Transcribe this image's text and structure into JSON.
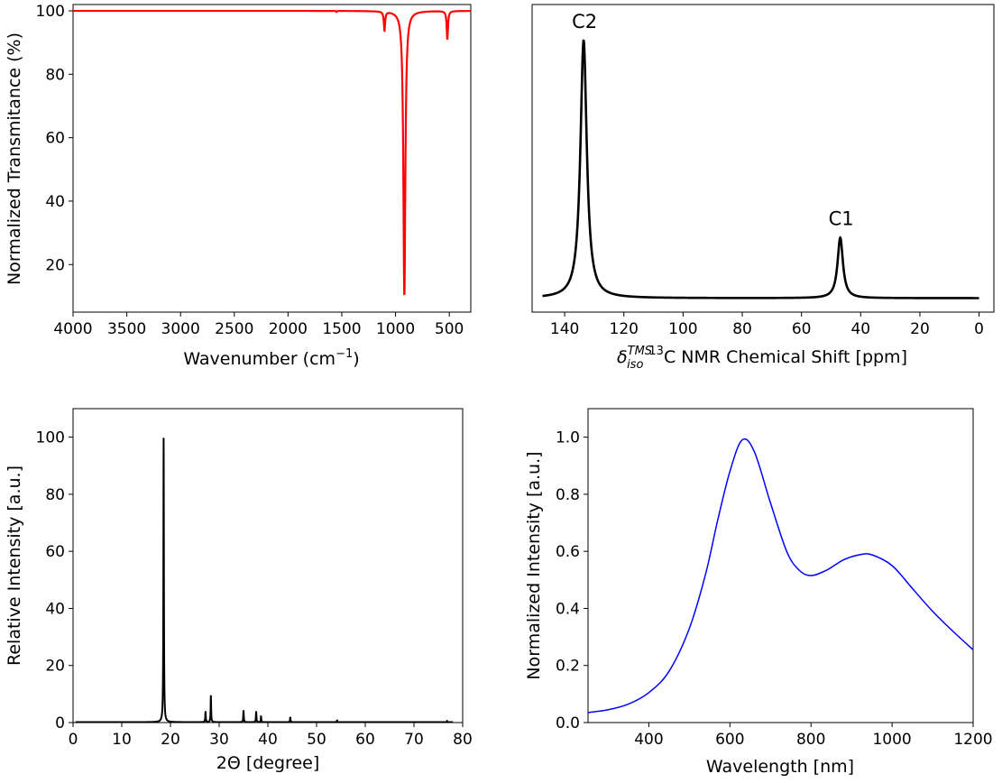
{
  "chart_data": [
    {
      "id": "ir",
      "type": "line",
      "xlabel": "Wavenumber (cm",
      "xlabel_sup": "−1",
      "xlabel_end": ")",
      "ylabel": "Normalized Transmitance (%)",
      "xlim": [
        4000,
        300
      ],
      "ylim": [
        5,
        102
      ],
      "xticks": [
        4000,
        3500,
        3000,
        2500,
        2000,
        1500,
        1000,
        500
      ],
      "yticks": [
        20,
        40,
        60,
        80,
        100
      ],
      "color": "#ff0000",
      "baseline": 100,
      "peaks": [
        {
          "x": 1550,
          "depth": 0.3,
          "width": 4
        },
        {
          "x": 1103,
          "depth": 6,
          "width": 7
        },
        {
          "x": 918,
          "depth": 90,
          "width": 11
        },
        {
          "x": 518,
          "depth": 9,
          "width": 7
        }
      ]
    },
    {
      "id": "nmr",
      "type": "line",
      "xlabel_main": "δ",
      "xlabel_sub": "iso",
      "xlabel_sup": "TMS",
      "xlabel_sup2": "13",
      "xlabel_rest": "C NMR Chemical Shift [ppm]",
      "xlim": [
        151,
        -5
      ],
      "ylim": [
        -0.05,
        1.12
      ],
      "xticks": [
        140,
        120,
        100,
        80,
        60,
        40,
        20,
        0
      ],
      "show_yticks": false,
      "color": "#000000",
      "baseline": 0.003,
      "peaks": [
        {
          "x": 133.6,
          "height": 0.98,
          "width": 1.3,
          "label": "C2"
        },
        {
          "x": 46.9,
          "height": 0.23,
          "width": 1.1,
          "label": "C1"
        }
      ],
      "range": [
        147.5,
        0
      ]
    },
    {
      "id": "xrd",
      "type": "line",
      "xlabel": "2Θ [degree]",
      "ylabel": "Relative Intensity [a.u.]",
      "xlim": [
        0,
        80
      ],
      "ylim": [
        0,
        110
      ],
      "xticks": [
        0,
        10,
        20,
        30,
        40,
        50,
        60,
        70,
        80
      ],
      "yticks": [
        0,
        20,
        40,
        60,
        80,
        100
      ],
      "color": "#000000",
      "peaks": [
        {
          "x": 18.6,
          "y": 100
        },
        {
          "x": 27.2,
          "y": 3.8
        },
        {
          "x": 28.3,
          "y": 9.4
        },
        {
          "x": 35.0,
          "y": 4.2
        },
        {
          "x": 37.6,
          "y": 3.8
        },
        {
          "x": 38.6,
          "y": 2.0
        },
        {
          "x": 44.6,
          "y": 1.8
        },
        {
          "x": 54.2,
          "y": 0.6
        },
        {
          "x": 76.8,
          "y": 0.4
        }
      ]
    },
    {
      "id": "uv",
      "type": "line",
      "xlabel": "Wavelength [nm]",
      "ylabel": "Normalized Intensity [a.u.]",
      "xlim": [
        250,
        1200
      ],
      "ylim": [
        0,
        1.1
      ],
      "xticks": [
        400,
        600,
        800,
        1000,
        1200
      ],
      "xtick_labels": [
        "400",
        "600",
        "800",
        "1000",
        "1200"
      ],
      "yticks": [
        0.0,
        0.2,
        0.4,
        0.6,
        0.8,
        1.0
      ],
      "ytick_labels": [
        "0.0",
        "0.2",
        "0.4",
        "0.6",
        "0.8",
        "1.0"
      ],
      "color": "#0000ff",
      "points": [
        [
          250,
          0.035
        ],
        [
          300,
          0.045
        ],
        [
          350,
          0.065
        ],
        [
          400,
          0.105
        ],
        [
          450,
          0.18
        ],
        [
          500,
          0.33
        ],
        [
          540,
          0.52
        ],
        [
          570,
          0.71
        ],
        [
          600,
          0.88
        ],
        [
          630,
          0.99
        ],
        [
          660,
          0.95
        ],
        [
          700,
          0.77
        ],
        [
          740,
          0.6
        ],
        [
          770,
          0.535
        ],
        [
          800,
          0.515
        ],
        [
          840,
          0.535
        ],
        [
          880,
          0.57
        ],
        [
          920,
          0.588
        ],
        [
          950,
          0.588
        ],
        [
          1000,
          0.55
        ],
        [
          1050,
          0.47
        ],
        [
          1100,
          0.39
        ],
        [
          1150,
          0.32
        ],
        [
          1200,
          0.255
        ]
      ]
    }
  ]
}
